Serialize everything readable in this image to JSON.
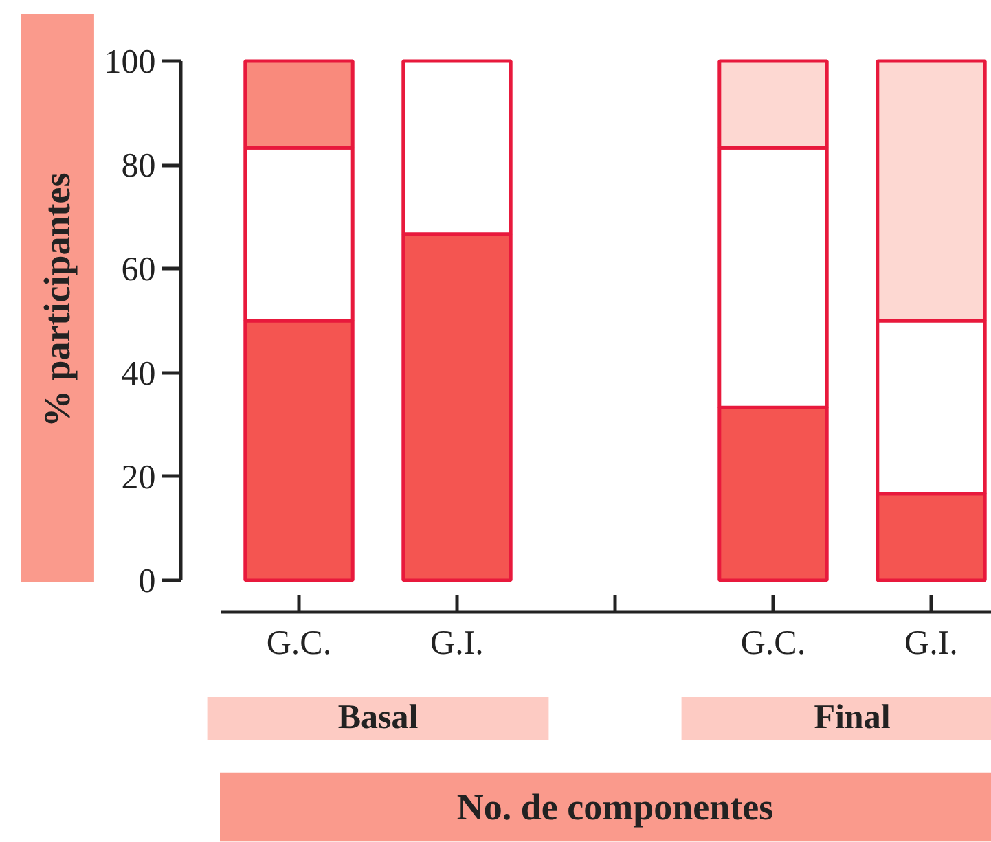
{
  "chart_data": {
    "type": "bar",
    "stacked": true,
    "ylabel": "% participantes",
    "xlabel": "No. de componentes",
    "categories": [
      "G.C.",
      "G.I.",
      null,
      "G.C.",
      "G.I."
    ],
    "series": [
      {
        "color": "#f45551",
        "values": [
          50,
          66.7,
          null,
          33.3,
          16.7
        ]
      },
      {
        "color": "#ffffff",
        "values": [
          33.3,
          33.3,
          null,
          50,
          33.3
        ]
      },
      {
        "colors": [
          "#f98a7c",
          "#ffffff",
          null,
          "#fdd8d2",
          "#fdd8d2"
        ],
        "values": [
          16.7,
          0,
          null,
          16.7,
          50
        ]
      }
    ],
    "annotations": [
      "Basal",
      "Final"
    ],
    "ylim": [
      0,
      100
    ],
    "yticks": [
      0,
      20,
      40,
      60,
      80,
      100
    ],
    "grid": false
  }
}
